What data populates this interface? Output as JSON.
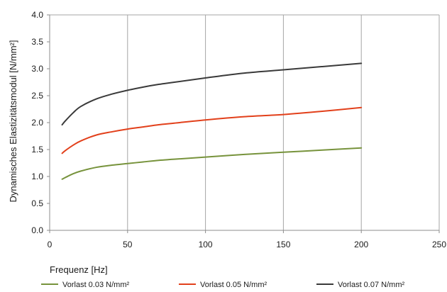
{
  "chart_data": {
    "type": "line",
    "title": "",
    "xlabel": "Frequenz [Hz]",
    "ylabel": "Dynamisches Elastizitätsmodul [N/mm²]",
    "xlim": [
      0,
      250
    ],
    "ylim": [
      0.0,
      4.0
    ],
    "x_ticks": [
      0,
      50,
      100,
      150,
      200,
      250
    ],
    "x_tick_labels": [
      "0",
      "50",
      "100",
      "150",
      "200",
      "250"
    ],
    "y_ticks": [
      0.0,
      0.5,
      1.0,
      1.5,
      2.0,
      2.5,
      3.0,
      3.5,
      4.0
    ],
    "y_tick_labels": [
      "0.0",
      "0.5",
      "1.0",
      "1.5",
      "2.0",
      "2.5",
      "3.0",
      "3.5",
      "4.0"
    ],
    "grid": "vertical",
    "legend_position": "bottom",
    "series": [
      {
        "name": "Vorlast 0.03 N/mm²",
        "color": "#77933c",
        "x": [
          8,
          10,
          15,
          20,
          30,
          40,
          50,
          60,
          70,
          80,
          100,
          125,
          150,
          175,
          200
        ],
        "y": [
          0.95,
          0.98,
          1.05,
          1.1,
          1.17,
          1.21,
          1.24,
          1.27,
          1.3,
          1.32,
          1.36,
          1.41,
          1.45,
          1.49,
          1.53
        ]
      },
      {
        "name": "Vorlast 0.05 N/mm²",
        "color": "#e2401b",
        "x": [
          8,
          10,
          15,
          20,
          30,
          40,
          50,
          60,
          70,
          80,
          100,
          125,
          150,
          175,
          200
        ],
        "y": [
          1.43,
          1.48,
          1.58,
          1.66,
          1.77,
          1.83,
          1.88,
          1.92,
          1.96,
          1.99,
          2.05,
          2.11,
          2.15,
          2.21,
          2.28
        ]
      },
      {
        "name": "Vorlast 0.07 N/mm²",
        "color": "#3a3a3a",
        "x": [
          8,
          10,
          15,
          20,
          30,
          40,
          50,
          60,
          70,
          80,
          100,
          125,
          150,
          175,
          200
        ],
        "y": [
          1.96,
          2.03,
          2.18,
          2.3,
          2.44,
          2.53,
          2.6,
          2.66,
          2.71,
          2.75,
          2.83,
          2.92,
          2.98,
          3.04,
          3.1
        ]
      }
    ]
  }
}
